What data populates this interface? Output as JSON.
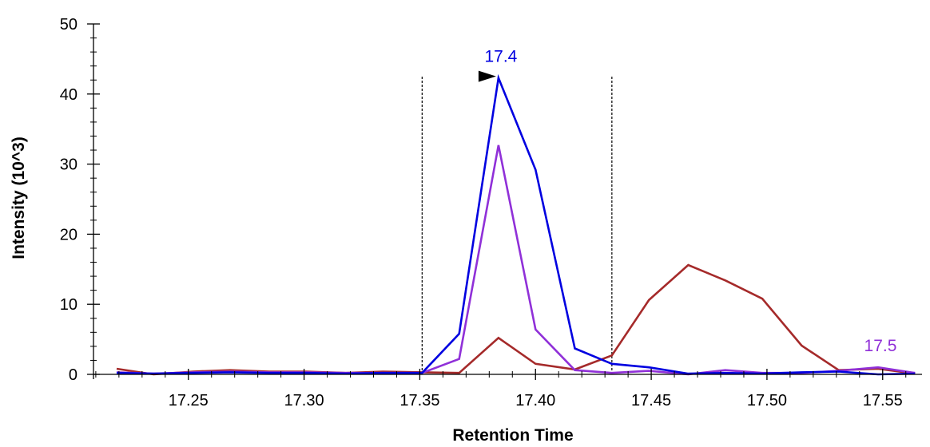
{
  "chart_data": {
    "type": "line",
    "xlabel": "Retention Time",
    "ylabel": "Intensity (10^3)",
    "xlim": [
      17.209,
      17.567
    ],
    "ylim": [
      0,
      50
    ],
    "x_ticks": [
      17.25,
      17.3,
      17.35,
      17.4,
      17.45,
      17.5,
      17.55
    ],
    "x_tick_labels": [
      "17.25",
      "17.30",
      "17.35",
      "17.40",
      "17.45",
      "17.50",
      "17.55"
    ],
    "y_ticks": [
      0,
      10,
      20,
      30,
      40,
      50
    ],
    "y_tick_labels": [
      "0",
      "10",
      "20",
      "30",
      "40",
      "50"
    ],
    "grid": false,
    "integration_bounds": [
      17.351,
      17.433
    ],
    "series": [
      {
        "color": "#0000e0",
        "x": [
          17.219,
          17.235,
          17.252,
          17.268,
          17.285,
          17.301,
          17.318,
          17.334,
          17.351,
          17.367,
          17.384,
          17.4,
          17.417,
          17.433,
          17.449,
          17.466,
          17.482,
          17.498,
          17.515,
          17.531,
          17.548,
          17.564
        ],
        "y": [
          0.2,
          0.1,
          0.2,
          0.3,
          0.2,
          0.2,
          0.1,
          0.2,
          0.2,
          5.8,
          42.3,
          29.2,
          3.7,
          1.5,
          1.0,
          0.1,
          0.2,
          0.1,
          0.3,
          0.4,
          0.0,
          0.1
        ]
      },
      {
        "color": "#9030d8",
        "x": [
          17.219,
          17.235,
          17.252,
          17.268,
          17.285,
          17.301,
          17.318,
          17.334,
          17.351,
          17.367,
          17.384,
          17.4,
          17.417,
          17.433,
          17.449,
          17.466,
          17.482,
          17.498,
          17.515,
          17.531,
          17.548,
          17.564
        ],
        "y": [
          0.3,
          0.1,
          0.3,
          0.4,
          0.3,
          0.3,
          0.2,
          0.2,
          0.2,
          2.2,
          32.7,
          6.4,
          0.6,
          0.2,
          0.5,
          0.0,
          0.6,
          0.2,
          0.2,
          0.5,
          1.0,
          0.2
        ]
      },
      {
        "color": "#a52a2a",
        "x": [
          17.219,
          17.235,
          17.252,
          17.268,
          17.285,
          17.301,
          17.318,
          17.334,
          17.351,
          17.367,
          17.384,
          17.4,
          17.417,
          17.433,
          17.449,
          17.466,
          17.482,
          17.498,
          17.515,
          17.531,
          17.548,
          17.564
        ],
        "y": [
          0.8,
          0.0,
          0.4,
          0.6,
          0.4,
          0.4,
          0.2,
          0.4,
          0.3,
          0.2,
          5.2,
          1.5,
          0.7,
          2.7,
          10.6,
          15.6,
          13.4,
          10.8,
          4.1,
          0.6,
          0.8,
          0.1
        ]
      }
    ],
    "annotations": [
      {
        "text": "17.4",
        "x": 17.384,
        "y": 42.3,
        "color": "#0000e0"
      },
      {
        "text": "17.5",
        "x": 17.548,
        "y": 1.0,
        "color": "#9030d8"
      }
    ]
  }
}
